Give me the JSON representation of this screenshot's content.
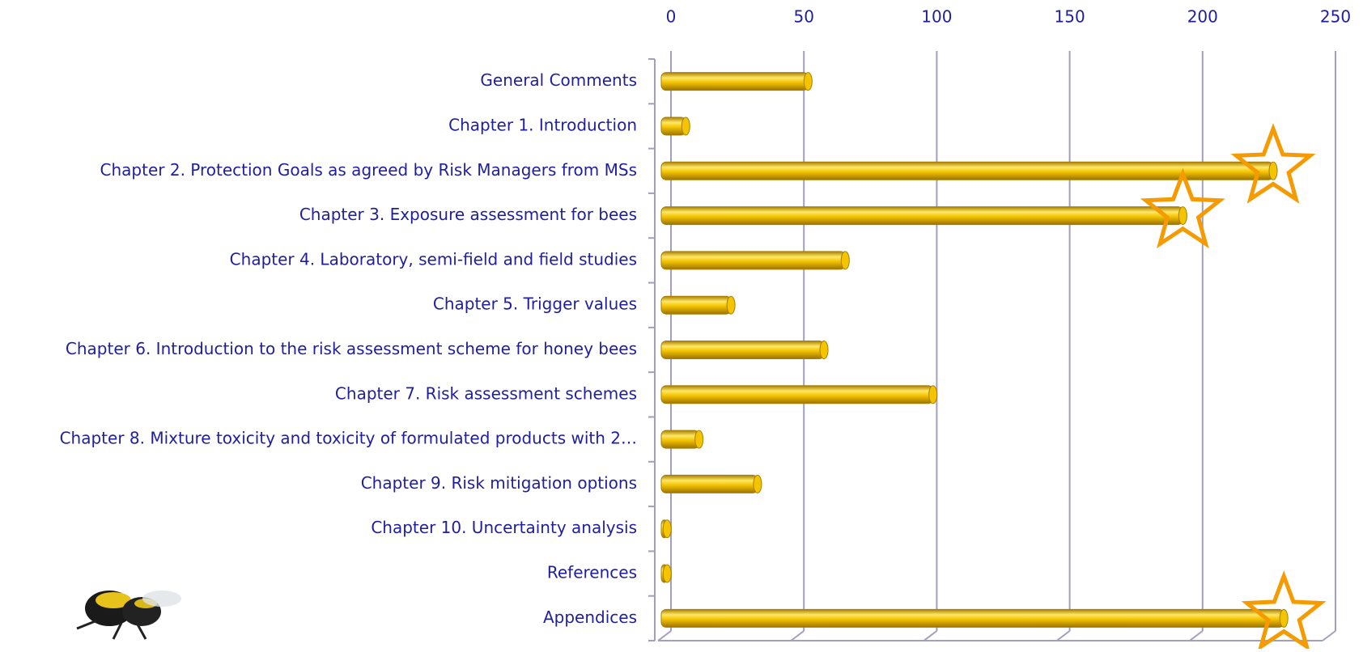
{
  "chart_data": {
    "type": "bar",
    "orientation": "horizontal",
    "categories": [
      "General Comments",
      "Chapter 1. Introduction ",
      "Chapter 2. Protection Goals as agreed by Risk Managers from MSs",
      "Chapter 3. Exposure assessment for bees",
      "Chapter 4. Laboratory, semi-field and field studies",
      "Chapter 5. Trigger values",
      "Chapter 6. Introduction to the risk assessment scheme for honey bees",
      "Chapter 7. Risk assessment schemes",
      "Chapter 8. Mixture toxicity and toxicity of formulated products with 2…",
      "Chapter 9. Risk mitigation options",
      "Chapter 10. Uncertainty analysis",
      "References ",
      "Appendices"
    ],
    "values": [
      54,
      8,
      229,
      195,
      68,
      25,
      60,
      101,
      13,
      35,
      1,
      1,
      233
    ],
    "highlight": [
      false,
      false,
      true,
      true,
      false,
      false,
      false,
      false,
      false,
      false,
      false,
      false,
      true
    ],
    "color": "#f5c400",
    "highlight_color": "#f59a00",
    "xlim": [
      0,
      250
    ],
    "xticks": [
      0,
      50,
      100,
      150,
      200,
      250
    ],
    "grid": true
  }
}
